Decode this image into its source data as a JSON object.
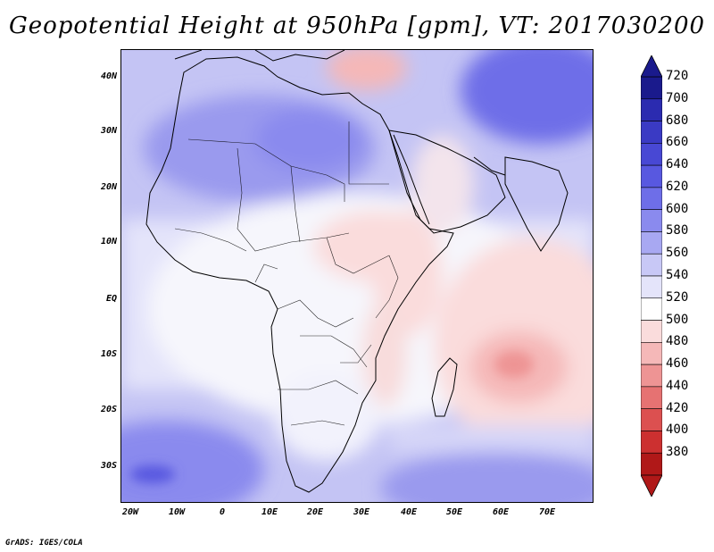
{
  "title": "Geopotential Height at 950hPa [gpm], VT: 2017030200",
  "credit": "GrADS: IGES/COLA",
  "axes": {
    "y_ticks": [
      "40N",
      "30N",
      "20N",
      "10N",
      "EQ",
      "10S",
      "20S",
      "30S"
    ],
    "x_ticks": [
      "20W",
      "10W",
      "0",
      "10E",
      "20E",
      "30E",
      "40E",
      "50E",
      "60E",
      "70E"
    ]
  },
  "colorbar": {
    "levels": [
      "720",
      "700",
      "680",
      "660",
      "640",
      "620",
      "600",
      "580",
      "560",
      "540",
      "520",
      "500",
      "480",
      "460",
      "440",
      "420",
      "400",
      "380"
    ],
    "colors": [
      "#1a1a8c",
      "#2b2bb0",
      "#3a3ac4",
      "#4848d4",
      "#5858e0",
      "#6e6ee8",
      "#8a8aee",
      "#a8a8f2",
      "#c8c8f6",
      "#e4e4fa",
      "#ffffff",
      "#fadcdc",
      "#f5b8b8",
      "#ee9494",
      "#e67272",
      "#dc5050",
      "#cc3030",
      "#b01818"
    ],
    "top_arrow_color": "#1a1a8c",
    "bottom_arrow_color": "#b01818"
  },
  "map": {
    "background": "#c0c0f4",
    "land_outline_color": "#000000"
  }
}
